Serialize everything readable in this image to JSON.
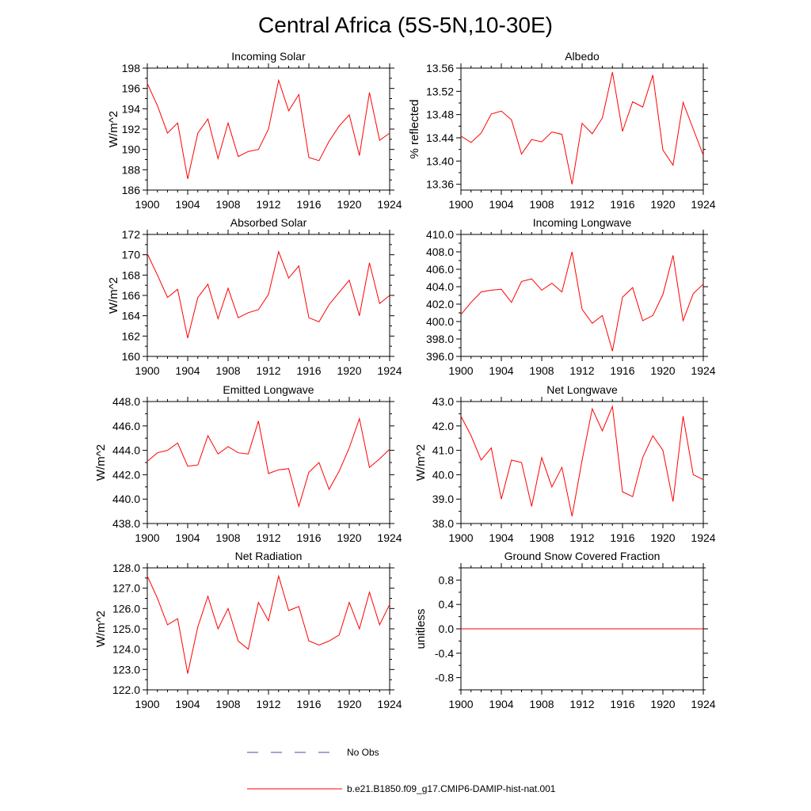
{
  "figure": {
    "title": "Central Africa (5S-5N,10-30E)",
    "line_color": "#ff0000",
    "obs_color": "#4a4aa8"
  },
  "legend": {
    "obs_label": "No Obs",
    "model_label": "b.e21.B1850.f09_g17.CMIP6-DAMIP-hist-nat.001"
  },
  "chart_data": [
    {
      "type": "line",
      "title": "Incoming Solar",
      "ylabel": "W/m^2",
      "xlim": [
        1900,
        1924
      ],
      "ylim": [
        186,
        198
      ],
      "xticks": [
        1900,
        1904,
        1908,
        1912,
        1916,
        1920,
        1924
      ],
      "xtick_labels": [
        "1900",
        "1904",
        "1908",
        "1912",
        "1916",
        "1920",
        "1924"
      ],
      "yticks": [
        186,
        188,
        190,
        192,
        194,
        196,
        198
      ],
      "ytick_labels": [
        "186",
        "188",
        "190",
        "192",
        "194",
        "196",
        "198"
      ],
      "x": [
        1900,
        1901,
        1902,
        1903,
        1904,
        1905,
        1906,
        1907,
        1908,
        1909,
        1910,
        1911,
        1912,
        1913,
        1914,
        1915,
        1916,
        1917,
        1918,
        1919,
        1920,
        1921,
        1922,
        1923,
        1924
      ],
      "series": [
        {
          "values": [
            196.5,
            194.3,
            191.6,
            192.6,
            187.1,
            191.6,
            193.0,
            189.1,
            192.6,
            189.3,
            189.8,
            190.0,
            192.0,
            196.8,
            193.8,
            195.4,
            189.2,
            188.9,
            190.8,
            192.3,
            193.4,
            189.4,
            195.6,
            190.9,
            191.6
          ]
        }
      ]
    },
    {
      "type": "line",
      "title": "Albedo",
      "ylabel": "% reflected",
      "xlim": [
        1900,
        1924
      ],
      "ylim": [
        13.35,
        13.56
      ],
      "xticks": [
        1900,
        1904,
        1908,
        1912,
        1916,
        1920,
        1924
      ],
      "xtick_labels": [
        "1900",
        "1904",
        "1908",
        "1912",
        "1916",
        "1920",
        "1924"
      ],
      "yticks": [
        13.36,
        13.4,
        13.44,
        13.48,
        13.52,
        13.56
      ],
      "ytick_labels": [
        "13.36",
        "13.40",
        "13.44",
        "13.48",
        "13.52",
        "13.56"
      ],
      "x": [
        1900,
        1901,
        1902,
        1903,
        1904,
        1905,
        1906,
        1907,
        1908,
        1909,
        1910,
        1911,
        1912,
        1913,
        1914,
        1915,
        1916,
        1917,
        1918,
        1919,
        1920,
        1921,
        1922,
        1923,
        1924
      ],
      "series": [
        {
          "values": [
            13.443,
            13.432,
            13.448,
            13.481,
            13.486,
            13.471,
            13.412,
            13.437,
            13.433,
            13.45,
            13.446,
            13.36,
            13.465,
            13.447,
            13.474,
            13.553,
            13.451,
            13.502,
            13.493,
            13.548,
            13.419,
            13.393,
            13.501,
            13.455,
            13.41
          ]
        }
      ]
    },
    {
      "type": "line",
      "title": "Absorbed Solar",
      "ylabel": "W/m^2",
      "xlim": [
        1900,
        1924
      ],
      "ylim": [
        160,
        172
      ],
      "xticks": [
        1900,
        1904,
        1908,
        1912,
        1916,
        1920,
        1924
      ],
      "xtick_labels": [
        "1900",
        "1904",
        "1908",
        "1912",
        "1916",
        "1920",
        "1924"
      ],
      "yticks": [
        160,
        162,
        164,
        166,
        168,
        170,
        172
      ],
      "ytick_labels": [
        "160",
        "162",
        "164",
        "166",
        "168",
        "170",
        "172"
      ],
      "x": [
        1900,
        1901,
        1902,
        1903,
        1904,
        1905,
        1906,
        1907,
        1908,
        1909,
        1910,
        1911,
        1912,
        1913,
        1914,
        1915,
        1916,
        1917,
        1918,
        1919,
        1920,
        1921,
        1922,
        1923,
        1924
      ],
      "series": [
        {
          "values": [
            170.1,
            168.0,
            165.8,
            166.6,
            161.8,
            165.8,
            167.1,
            163.7,
            166.7,
            163.8,
            164.3,
            164.6,
            166.1,
            170.3,
            167.7,
            168.9,
            163.8,
            163.4,
            165.1,
            166.3,
            167.5,
            164.0,
            169.2,
            165.2,
            166.0
          ]
        }
      ]
    },
    {
      "type": "line",
      "title": "Incoming Longwave",
      "ylabel": "",
      "xlim": [
        1900,
        1924
      ],
      "ylim": [
        396,
        410
      ],
      "xticks": [
        1900,
        1904,
        1908,
        1912,
        1916,
        1920,
        1924
      ],
      "xtick_labels": [
        "1900",
        "1904",
        "1908",
        "1912",
        "1916",
        "1920",
        "1924"
      ],
      "yticks": [
        396,
        398,
        400,
        402,
        404,
        406,
        408,
        410
      ],
      "ytick_labels": [
        "396.0",
        "398.0",
        "400.0",
        "402.0",
        "404.0",
        "406.0",
        "408.0",
        "410.0"
      ],
      "x": [
        1900,
        1901,
        1902,
        1903,
        1904,
        1905,
        1906,
        1907,
        1908,
        1909,
        1910,
        1911,
        1912,
        1913,
        1914,
        1915,
        1916,
        1917,
        1918,
        1919,
        1920,
        1921,
        1922,
        1923,
        1924
      ],
      "series": [
        {
          "values": [
            400.8,
            402.2,
            403.4,
            403.6,
            403.7,
            402.2,
            404.6,
            404.9,
            403.6,
            404.4,
            403.4,
            408.0,
            401.4,
            399.8,
            400.7,
            396.6,
            402.8,
            403.9,
            400.1,
            400.7,
            403.1,
            407.6,
            400.1,
            403.2,
            404.3
          ]
        }
      ]
    },
    {
      "type": "line",
      "title": "Emitted Longwave",
      "ylabel": "W/m^2",
      "xlim": [
        1900,
        1924
      ],
      "ylim": [
        438,
        448
      ],
      "xticks": [
        1900,
        1904,
        1908,
        1912,
        1916,
        1920,
        1924
      ],
      "xtick_labels": [
        "1900",
        "1904",
        "1908",
        "1912",
        "1916",
        "1920",
        "1924"
      ],
      "yticks": [
        438,
        440,
        442,
        444,
        446,
        448
      ],
      "ytick_labels": [
        "438.0",
        "440.0",
        "442.0",
        "444.0",
        "446.0",
        "448.0"
      ],
      "x": [
        1900,
        1901,
        1902,
        1903,
        1904,
        1905,
        1906,
        1907,
        1908,
        1909,
        1910,
        1911,
        1912,
        1913,
        1914,
        1915,
        1916,
        1917,
        1918,
        1919,
        1920,
        1921,
        1922,
        1923,
        1924
      ],
      "series": [
        {
          "values": [
            443.1,
            443.8,
            444.0,
            444.6,
            442.7,
            442.8,
            445.2,
            443.7,
            444.3,
            443.8,
            443.7,
            446.4,
            442.1,
            442.4,
            442.5,
            439.4,
            442.2,
            443.0,
            440.8,
            442.3,
            444.2,
            446.6,
            442.6,
            443.3,
            444.1
          ]
        }
      ]
    },
    {
      "type": "line",
      "title": "Net Longwave",
      "ylabel": "W/m^2",
      "xlim": [
        1900,
        1924
      ],
      "ylim": [
        38,
        43
      ],
      "xticks": [
        1900,
        1904,
        1908,
        1912,
        1916,
        1920,
        1924
      ],
      "xtick_labels": [
        "1900",
        "1904",
        "1908",
        "1912",
        "1916",
        "1920",
        "1924"
      ],
      "yticks": [
        38,
        39,
        40,
        41,
        42,
        43
      ],
      "ytick_labels": [
        "38.0",
        "39.0",
        "40.0",
        "41.0",
        "42.0",
        "43.0"
      ],
      "x": [
        1900,
        1901,
        1902,
        1903,
        1904,
        1905,
        1906,
        1907,
        1908,
        1909,
        1910,
        1911,
        1912,
        1913,
        1914,
        1915,
        1916,
        1917,
        1918,
        1919,
        1920,
        1921,
        1922,
        1923,
        1924
      ],
      "series": [
        {
          "values": [
            42.4,
            41.6,
            40.6,
            41.1,
            39.0,
            40.6,
            40.5,
            38.7,
            40.7,
            39.5,
            40.3,
            38.3,
            40.6,
            42.7,
            41.8,
            42.8,
            39.3,
            39.1,
            40.7,
            41.6,
            41.0,
            38.9,
            42.4,
            40.0,
            39.8
          ]
        }
      ]
    },
    {
      "type": "line",
      "title": "Net Radiation",
      "ylabel": "W/m^2",
      "xlim": [
        1900,
        1924
      ],
      "ylim": [
        122,
        128
      ],
      "xticks": [
        1900,
        1904,
        1908,
        1912,
        1916,
        1920,
        1924
      ],
      "xtick_labels": [
        "1900",
        "1904",
        "1908",
        "1912",
        "1916",
        "1920",
        "1924"
      ],
      "yticks": [
        122,
        123,
        124,
        125,
        126,
        127,
        128
      ],
      "ytick_labels": [
        "122.0",
        "123.0",
        "124.0",
        "125.0",
        "126.0",
        "127.0",
        "128.0"
      ],
      "x": [
        1900,
        1901,
        1902,
        1903,
        1904,
        1905,
        1906,
        1907,
        1908,
        1909,
        1910,
        1911,
        1912,
        1913,
        1914,
        1915,
        1916,
        1917,
        1918,
        1919,
        1920,
        1921,
        1922,
        1923,
        1924
      ],
      "series": [
        {
          "values": [
            127.6,
            126.5,
            125.2,
            125.5,
            122.8,
            125.1,
            126.6,
            125.0,
            126.0,
            124.4,
            124.0,
            126.3,
            125.4,
            127.6,
            125.9,
            126.1,
            124.4,
            124.2,
            124.4,
            124.7,
            126.3,
            125.0,
            126.8,
            125.2,
            126.2
          ]
        }
      ]
    },
    {
      "type": "line",
      "title": "Ground Snow Covered Fraction",
      "ylabel": "unitless",
      "xlim": [
        1900,
        1924
      ],
      "ylim": [
        -1.0,
        1.0
      ],
      "xticks": [
        1900,
        1904,
        1908,
        1912,
        1916,
        1920,
        1924
      ],
      "xtick_labels": [
        "1900",
        "1904",
        "1908",
        "1912",
        "1916",
        "1920",
        "1924"
      ],
      "yticks": [
        -0.8,
        -0.4,
        0.0,
        0.4,
        0.8
      ],
      "ytick_labels": [
        "-0.8",
        "-0.4",
        "0.0",
        "0.4",
        "0.8"
      ],
      "x": [
        1900,
        1924
      ],
      "series": [
        {
          "values": [
            0.0,
            0.0
          ]
        }
      ]
    }
  ]
}
